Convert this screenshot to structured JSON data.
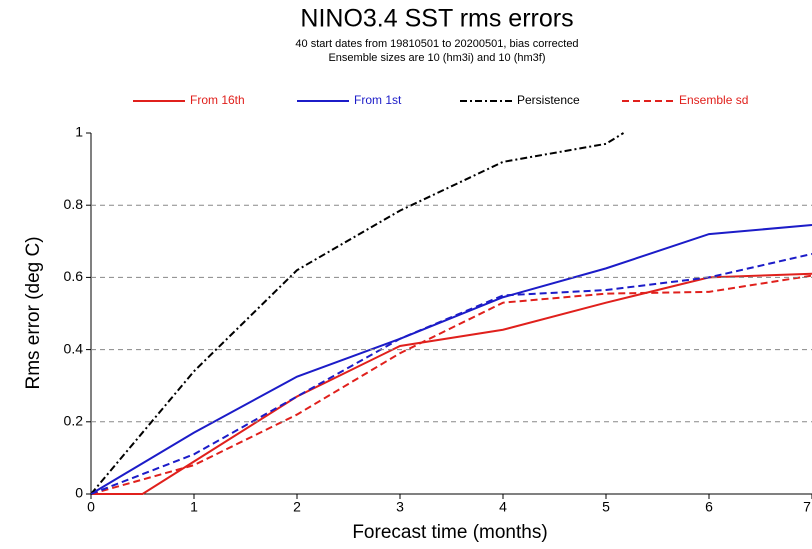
{
  "chart_data": {
    "type": "line",
    "title": "NINO3.4 SST rms errors",
    "subtitle": [
      "40 start dates from 19810501 to 20200501, bias corrected",
      "Ensemble sizes are 10 (hm3i)  and 10 (hm3f)"
    ],
    "xlabel": "Forecast time (months)",
    "ylabel": "Rms error (deg C)",
    "xlim": [
      0,
      7
    ],
    "xticks": [
      0,
      1,
      2,
      3,
      4,
      5,
      6,
      7
    ],
    "ylim": [
      0,
      1
    ],
    "yticks": [
      0,
      0.2,
      0.4,
      0.6,
      0.8,
      1
    ],
    "grid": true,
    "series": [
      {
        "name": "From 16th",
        "color": "#e0201c",
        "dash": "solid",
        "x": [
          0,
          0.5,
          1,
          2,
          3,
          4,
          5,
          6,
          7
        ],
        "values": [
          0,
          0,
          0.09,
          0.27,
          0.41,
          0.455,
          0.53,
          0.6,
          0.61
        ]
      },
      {
        "name": "From 1st",
        "color": "#1c1cc8",
        "dash": "solid",
        "x": [
          0,
          1,
          2,
          3,
          4,
          5,
          6,
          7
        ],
        "values": [
          0,
          0.17,
          0.325,
          0.43,
          0.545,
          0.625,
          0.72,
          0.745
        ]
      },
      {
        "name": "Persistence",
        "color": "#000000",
        "dash": "dashdot",
        "x": [
          0,
          1,
          2,
          3,
          4,
          5,
          5.17
        ],
        "values": [
          0,
          0.34,
          0.62,
          0.785,
          0.92,
          0.97,
          1
        ]
      },
      {
        "name": "Ensemble sd",
        "color": "#e0201c",
        "dash": "dashed",
        "x": [
          0,
          1,
          2,
          3,
          4,
          5,
          6,
          7
        ],
        "values": [
          0,
          0.08,
          0.22,
          0.39,
          0.53,
          0.555,
          0.56,
          0.605
        ]
      },
      {
        "color": "#1c1cc8",
        "dash": "dashed",
        "x": [
          0,
          1,
          2,
          3,
          4,
          5,
          6,
          7
        ],
        "values": [
          0,
          0.11,
          0.27,
          0.43,
          0.55,
          0.565,
          0.6,
          0.665
        ]
      }
    ]
  }
}
